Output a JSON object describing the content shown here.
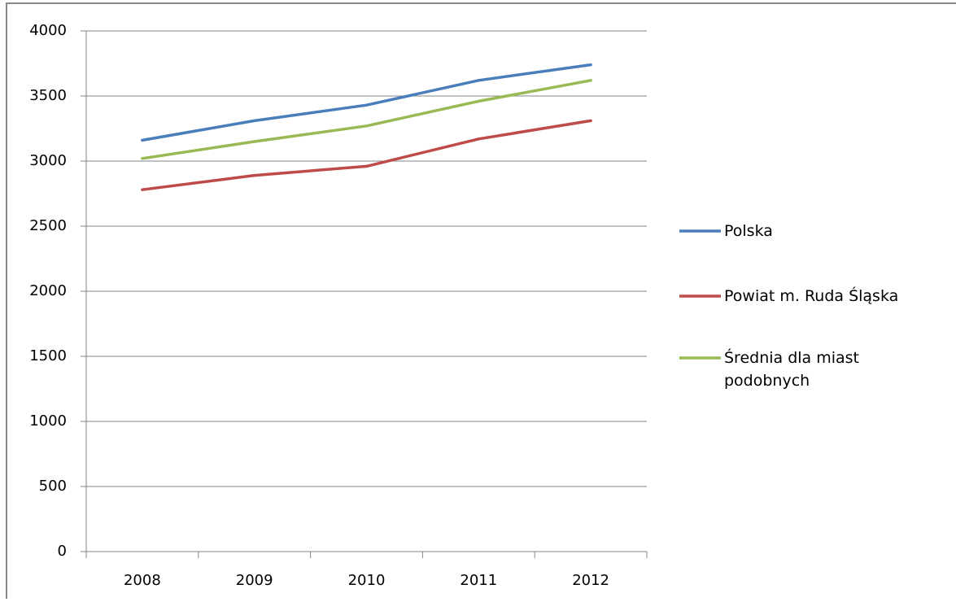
{
  "chart_data": {
    "type": "line",
    "categories": [
      "2008",
      "2009",
      "2010",
      "2011",
      "2012"
    ],
    "series": [
      {
        "name": "Polska",
        "color": "#4a7ebb",
        "values": [
          3160,
          3310,
          3430,
          3620,
          3740
        ]
      },
      {
        "name": "Powiat m. Ruda Śląska",
        "color": "#be4b48",
        "values": [
          2780,
          2890,
          2960,
          3170,
          3310
        ]
      },
      {
        "name": "Średnia dla miast podobnych",
        "color": "#98b954",
        "values": [
          3020,
          3150,
          3270,
          3460,
          3620
        ]
      }
    ],
    "ylim": [
      0,
      4000
    ],
    "yticks": [
      0,
      500,
      1000,
      1500,
      2000,
      2500,
      3000,
      3500,
      4000
    ],
    "grid": true,
    "legend": "right"
  }
}
